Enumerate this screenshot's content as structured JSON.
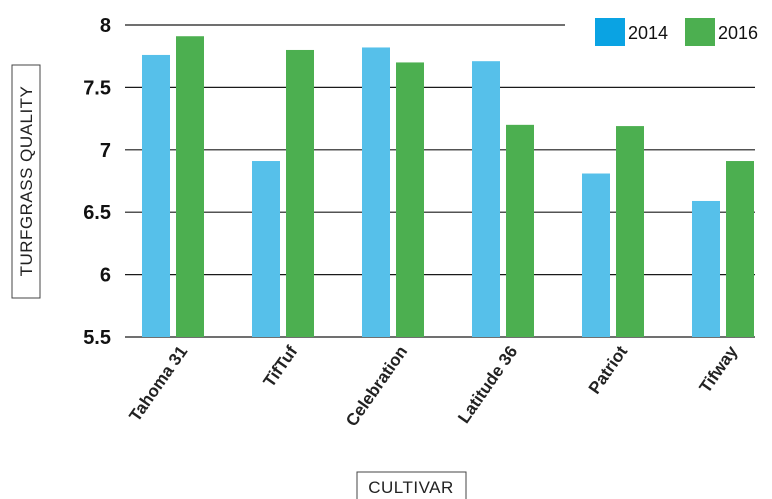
{
  "chart_data": {
    "type": "bar",
    "categories": [
      "Tahoma 31",
      "TifTuf",
      "Celebration",
      "Latitude 36",
      "Patriot",
      "Tifway"
    ],
    "series": [
      {
        "name": "2014",
        "values": [
          7.76,
          6.91,
          7.82,
          7.71,
          6.81,
          6.59
        ],
        "color": "#56c0ea"
      },
      {
        "name": "2016",
        "values": [
          7.91,
          7.8,
          7.7,
          7.2,
          7.19,
          6.91
        ],
        "color": "#4caf50"
      }
    ],
    "yticks": [
      "8",
      "7.5",
      "7",
      "6.5",
      "6",
      "5.5"
    ],
    "ylim": [
      5.5,
      8
    ],
    "xlabel": "CULTIVAR",
    "ylabel": "TURFGRASS QUALITY",
    "grid": true,
    "legend": "top-right"
  }
}
